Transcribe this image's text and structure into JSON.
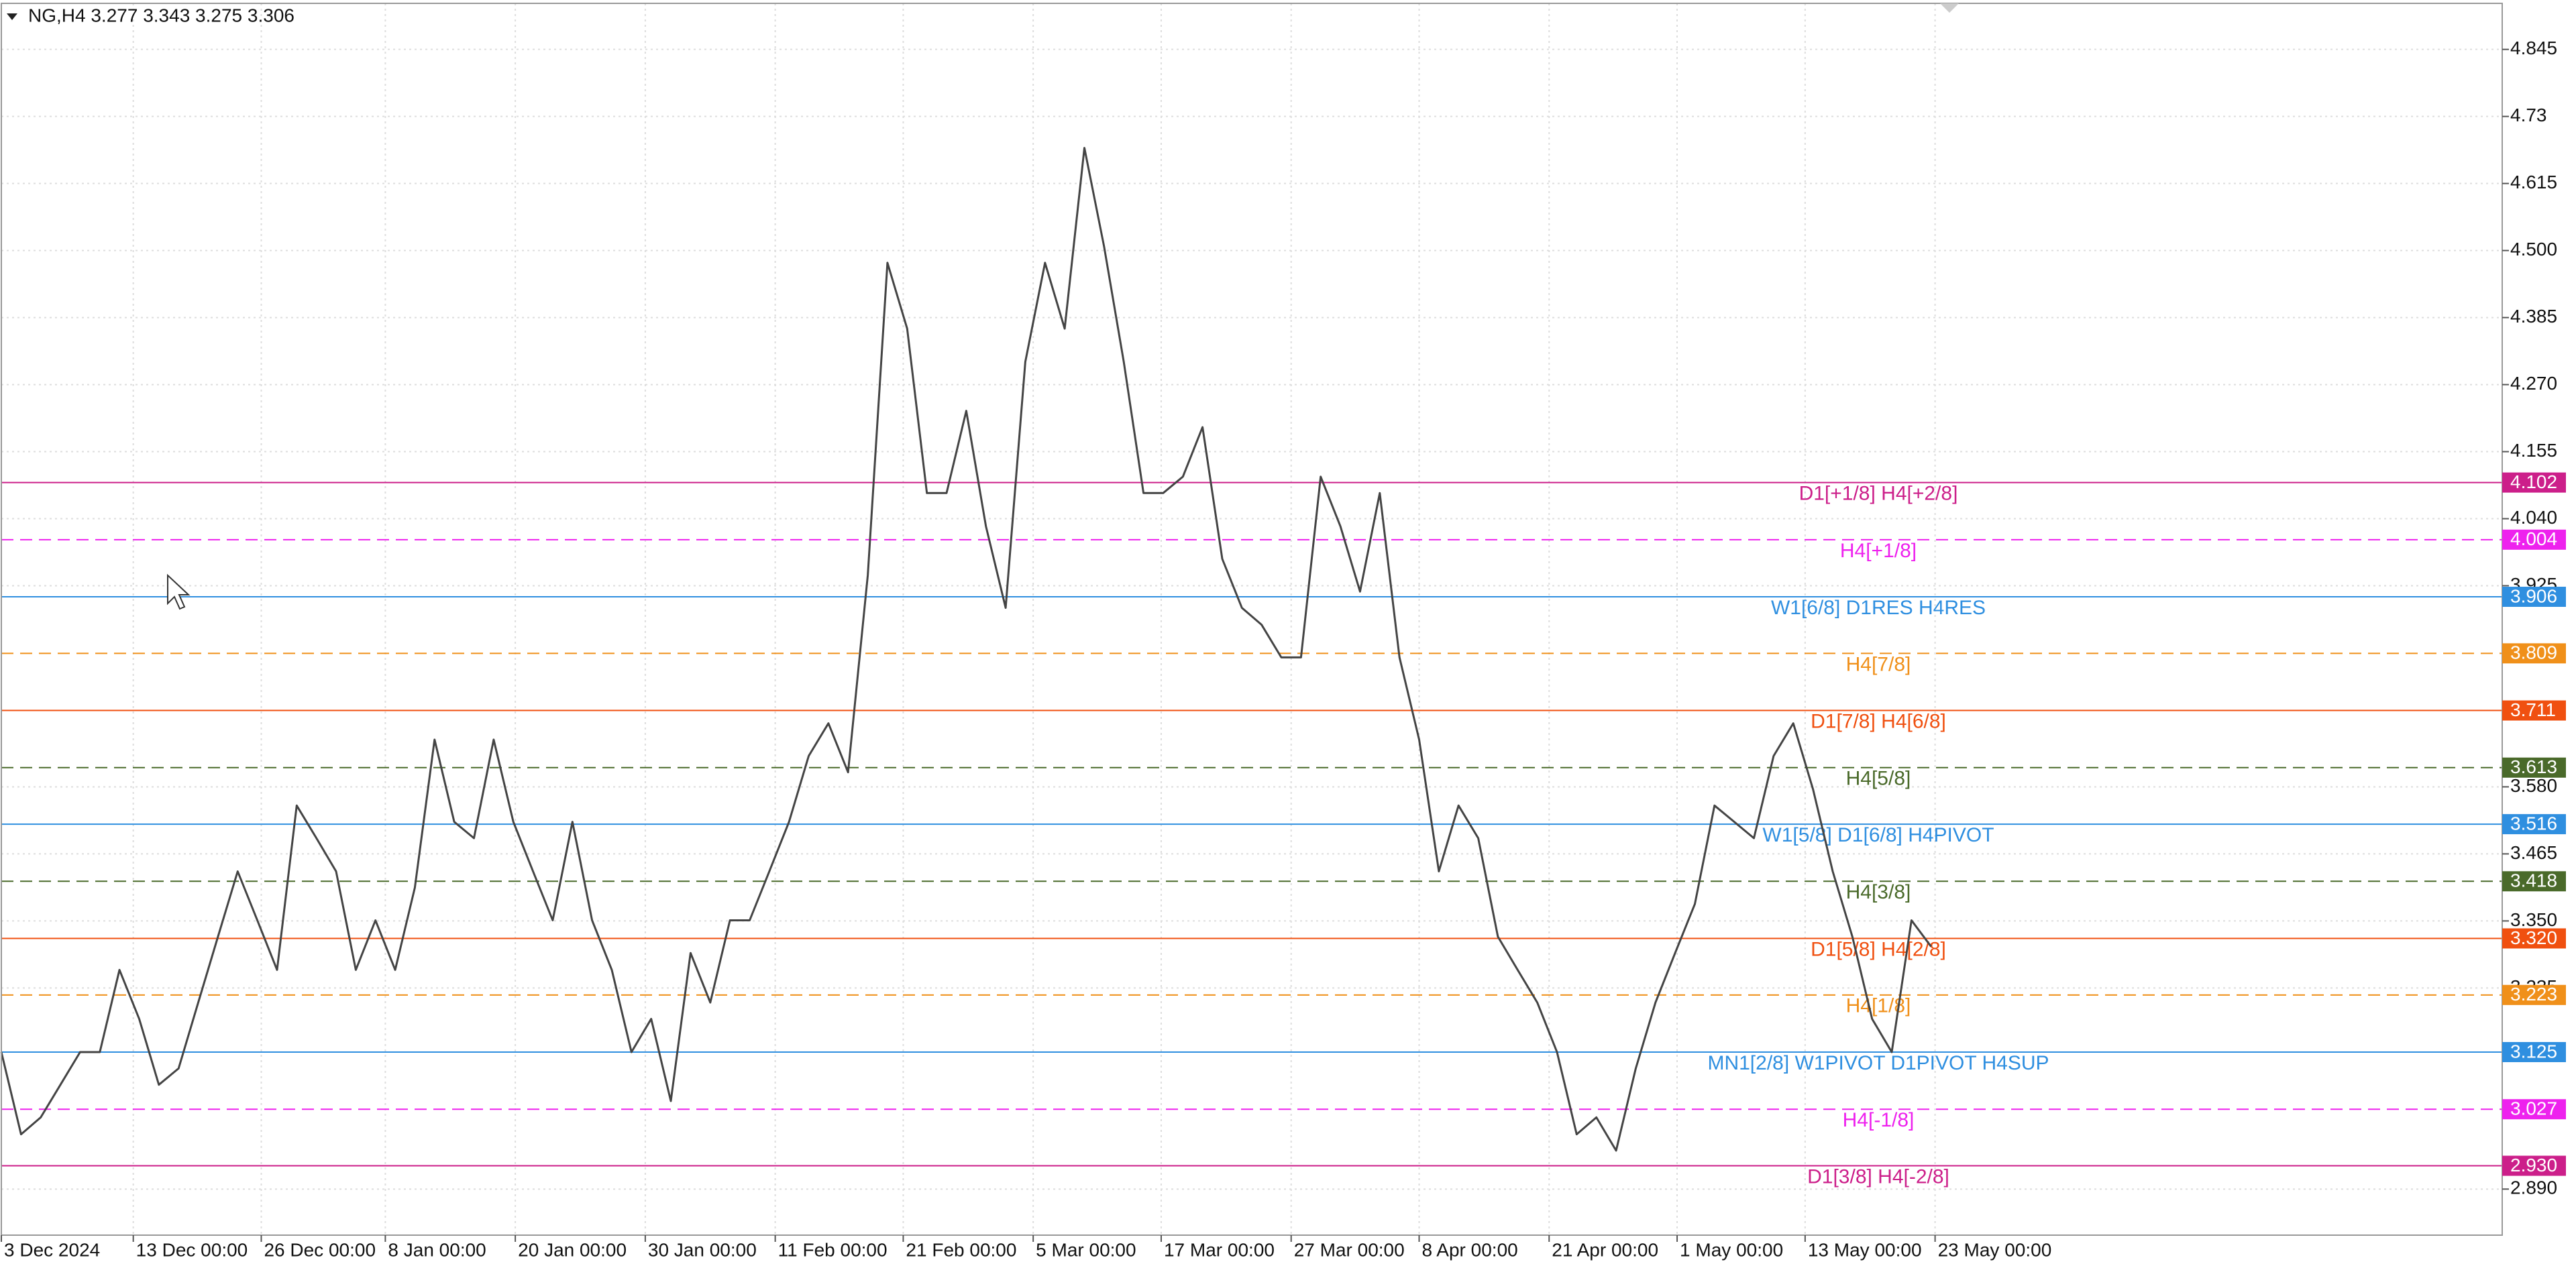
{
  "chart_data": {
    "type": "line",
    "title": "NG,H4  3.277 3.343 3.275 3.306",
    "x": [
      0,
      1,
      2,
      3,
      4,
      5,
      6,
      7,
      8,
      9,
      10,
      11,
      12,
      13,
      14,
      15,
      16,
      17,
      18,
      19,
      20,
      21,
      22,
      23,
      24,
      25,
      26,
      27,
      28,
      29,
      30,
      31,
      32,
      33,
      34,
      35,
      36,
      37,
      38,
      39,
      40,
      41,
      42,
      43,
      44,
      45,
      46,
      47,
      48,
      49,
      50,
      51,
      52,
      53,
      54,
      55,
      56,
      57,
      58,
      59,
      60,
      61,
      62,
      63,
      64,
      65,
      66,
      67,
      68,
      69,
      70,
      71,
      72,
      73,
      74,
      75,
      76,
      77,
      78,
      79,
      80,
      81,
      82,
      83,
      84,
      85,
      86,
      87,
      88,
      89,
      90,
      91,
      92,
      93,
      94,
      95,
      96,
      97,
      98
    ],
    "series": [
      {
        "name": "NG,H4",
        "color": "#444444",
        "values": [
          3.125,
          2.984,
          3.013,
          3.069,
          3.125,
          3.125,
          3.266,
          3.182,
          3.069,
          3.097,
          3.21,
          3.323,
          3.435,
          3.351,
          3.266,
          3.548,
          3.492,
          3.435,
          3.266,
          3.351,
          3.266,
          3.407,
          3.661,
          3.52,
          3.492,
          3.661,
          3.52,
          3.435,
          3.351,
          3.52,
          3.351,
          3.266,
          3.125,
          3.182,
          3.041,
          3.295,
          3.21,
          3.351,
          3.351,
          3.435,
          3.52,
          3.633,
          3.689,
          3.605,
          3.943,
          4.479,
          4.366,
          4.084,
          4.084,
          4.225,
          4.027,
          3.887,
          4.309,
          4.479,
          4.366,
          4.676,
          4.507,
          4.309,
          4.084,
          4.084,
          4.112,
          4.197,
          3.971,
          3.887,
          3.858,
          3.802,
          3.802,
          4.112,
          4.027,
          3.915,
          4.084,
          3.802,
          3.661,
          3.435,
          3.548,
          3.492,
          3.323,
          3.266,
          3.21,
          3.125,
          2.984,
          3.013,
          2.956,
          3.097,
          3.21,
          3.295,
          3.379,
          3.548,
          3.52,
          3.492,
          3.633,
          3.689,
          3.576,
          3.435,
          3.323,
          3.182,
          3.125,
          3.351,
          3.306
        ]
      }
    ],
    "xlim": [
      0,
      127
    ],
    "xticks": [
      {
        "value": 0,
        "label": "3 Dec 2024"
      },
      {
        "value": 6.7,
        "label": "13 Dec 00:00"
      },
      {
        "value": 13.2,
        "label": "26 Dec 00:00"
      },
      {
        "value": 19.5,
        "label": "8 Jan 00:00"
      },
      {
        "value": 26.1,
        "label": "20 Jan 00:00"
      },
      {
        "value": 32.7,
        "label": "30 Jan 00:00"
      },
      {
        "value": 39.3,
        "label": "11 Feb 00:00"
      },
      {
        "value": 45.8,
        "label": "21 Feb 00:00"
      },
      {
        "value": 52.4,
        "label": "5 Mar 00:00"
      },
      {
        "value": 58.9,
        "label": "17 Mar 00:00"
      },
      {
        "value": 65.5,
        "label": "27 Mar 00:00"
      },
      {
        "value": 72,
        "label": "8 Apr 00:00"
      },
      {
        "value": 78.6,
        "label": "21 Apr 00:00"
      },
      {
        "value": 85.1,
        "label": "1 May 00:00"
      },
      {
        "value": 91.6,
        "label": "13 May 00:00"
      },
      {
        "value": 98.2,
        "label": "23 May 00:00"
      }
    ],
    "ylim": [
      2.811,
      4.924
    ],
    "yticks": [
      4.845,
      4.73,
      4.615,
      {
        "value": 4.5,
        "label": "4.500"
      },
      4.385,
      {
        "value": 4.27,
        "label": "4.270"
      },
      4.155,
      {
        "value": 4.04,
        "label": "4.040"
      },
      3.925,
      {
        "value": 3.58,
        "label": "3.580"
      },
      3.465,
      {
        "value": 3.35,
        "label": "3.350"
      },
      3.235,
      {
        "value": 2.89,
        "label": "2.890"
      }
    ],
    "grid": true,
    "levels": [
      {
        "name": "D1[+1/8] H4[+2/8]",
        "value": 4.102,
        "value_label": "4.102",
        "color": "#cc1f8a",
        "dashed": false
      },
      {
        "name": "H4[+1/8]",
        "value": 4.004,
        "value_label": "4.004",
        "color": "#ee22ee",
        "dashed": true
      },
      {
        "name": "W1[6/8] D1RES H4RES",
        "value": 3.906,
        "value_label": "3.906",
        "color": "#2f8fe0",
        "dashed": false
      },
      {
        "name": "H4[7/8]",
        "value": 3.809,
        "value_label": "3.809",
        "color": "#f0901a",
        "dashed": true
      },
      {
        "name": "D1[7/8] H4[6/8]",
        "value": 3.711,
        "value_label": "3.711",
        "color": "#f05010",
        "dashed": false
      },
      {
        "name": "H4[5/8]",
        "value": 3.613,
        "value_label": "3.613",
        "color": "#4a6a2a",
        "dashed": true
      },
      {
        "name": "W1[5/8] D1[6/8] H4PIVOT",
        "value": 3.516,
        "value_label": "3.516",
        "color": "#2f8fe0",
        "dashed": false
      },
      {
        "name": "H4[3/8]",
        "value": 3.418,
        "value_label": "3.418",
        "color": "#4a6a2a",
        "dashed": true
      },
      {
        "name": "D1[5/8] H4[2/8]",
        "value": 3.32,
        "value_label": "3.320",
        "color": "#f05010",
        "dashed": false
      },
      {
        "name": "H4[1/8]",
        "value": 3.223,
        "value_label": "3.223",
        "color": "#f0901a",
        "dashed": true
      },
      {
        "name": "MN1[2/8] W1PIVOT D1PIVOT H4SUP",
        "value": 3.125,
        "value_label": "3.125",
        "color": "#2f8fe0",
        "dashed": false
      },
      {
        "name": "H4[-1/8]",
        "value": 3.027,
        "value_label": "3.027",
        "color": "#ee22ee",
        "dashed": true
      },
      {
        "name": "D1[3/8] H4[-2/8]",
        "value": 2.93,
        "value_label": "2.930",
        "color": "#cc1f8a",
        "dashed": false
      }
    ]
  }
}
